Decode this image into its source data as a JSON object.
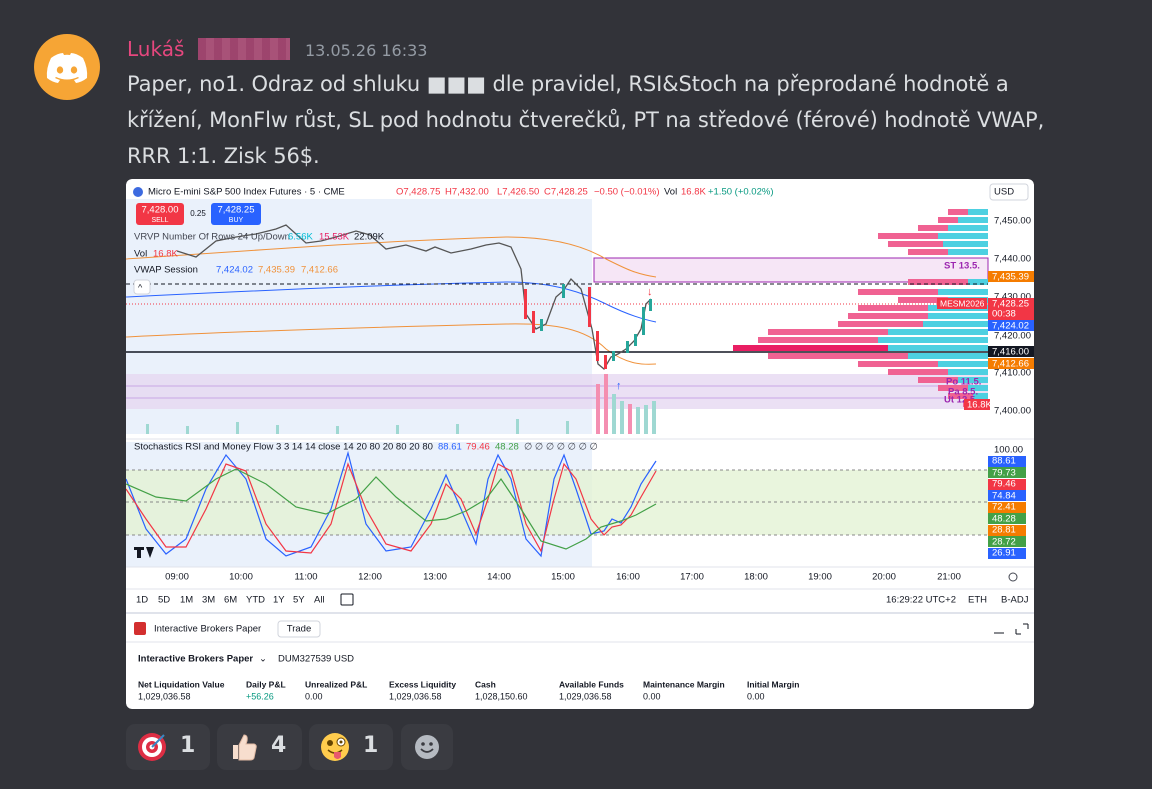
{
  "message": {
    "author": "Lukáš",
    "timestamp": "13.05.26 16:33",
    "text": [
      "Paper, no1. Odraz od shluku ■■■ dle pravidel, RSI&Stoch na přeprodané hodnotě a",
      "křížení, MonFlw růst, SL pod hodnotu čtverečků, PT na středové (férové) hodnotě VWAP,",
      "RRR 1:1. Zisk 56$."
    ]
  },
  "screenshot": {
    "header": {
      "symbol": "Micro E-mini S&P 500 Index Futures · 5 · CME",
      "open": "O7,428.75",
      "high": "H7,432.00",
      "low": "L7,426.50",
      "close": "C7,428.25",
      "change": "−0.50 (−0.01%)",
      "volume_label": "Vol",
      "volume": "16.8K",
      "volume_change": "+1.50 (+0.02%)"
    },
    "currency": "USD",
    "order": {
      "sell_price": "7,428.00",
      "sell_label": "SELL",
      "spread": "0.25",
      "buy_price": "7,428.25",
      "buy_label": "BUY"
    },
    "indicators": {
      "vrvp": "VRVP Number Of Rows 24 Up/Down",
      "vrvp_values": [
        "6.56K",
        "15.53K",
        "22.09K"
      ],
      "vol_label": "Vol",
      "vol_value": "16.8K",
      "vwap_label": "VWAP Session",
      "vwap_values": [
        "7,424.02",
        "7,435.39",
        "7,412.66"
      ]
    },
    "price_axis": [
      "7,450.00",
      "7,440.00",
      "7,430.00",
      "7,420.00",
      "7,410.00",
      "7,400.00"
    ],
    "price_labels": [
      "ST 13.5.",
      "7,435.39",
      "MESM2026",
      "7,428.25",
      "00:38",
      "7,424.02",
      "7,416.00",
      "7,412.66",
      "Po 11.5.",
      "Pa 8.5.",
      "Ut 12.5.",
      "16.8K"
    ],
    "stoch": {
      "title": "Stochastics RSI and Money Flow 3 3 14 14 close 14 20 80 20 80 20 80",
      "values": [
        "88.61",
        "79.46",
        "48.28"
      ],
      "empty": "∅ ∅ ∅ ∅ ∅ ∅ ∅",
      "axis_top": "100.00",
      "axis_labels": [
        "88.61",
        "79.73",
        "79.46",
        "74.84",
        "72.41",
        "48.28",
        "28.81",
        "28.72",
        "26.91"
      ]
    },
    "time_axis": [
      "09:00",
      "10:00",
      "11:00",
      "12:00",
      "13:00",
      "14:00",
      "15:00",
      "16:00",
      "17:00",
      "18:00",
      "19:00",
      "20:00",
      "21:00"
    ],
    "ranges": [
      "1D",
      "5D",
      "1M",
      "3M",
      "6M",
      "YTD",
      "1Y",
      "5Y",
      "All"
    ],
    "status": {
      "time": "16:29:22 UTC+2",
      "session": "ETH",
      "adjust": "B-ADJ"
    },
    "panel": {
      "broker": "Interactive Brokers Paper",
      "trade": "Trade",
      "account_broker": "Interactive Brokers Paper",
      "account_id": "DUM327539 USD",
      "columns": [
        {
          "label": "Net Liquidation Value",
          "value": "1,029,036.58"
        },
        {
          "label": "Daily P&L",
          "value": "+56.26"
        },
        {
          "label": "Unrealized P&L",
          "value": "0.00"
        },
        {
          "label": "Excess Liquidity",
          "value": "1,029,036.58"
        },
        {
          "label": "Cash",
          "value": "1,028,150.60"
        },
        {
          "label": "Available Funds",
          "value": "1,029,036.58"
        },
        {
          "label": "Maintenance Margin",
          "value": "0.00"
        },
        {
          "label": "Initial Margin",
          "value": "0.00"
        }
      ]
    }
  },
  "reactions": [
    {
      "count": 1
    },
    {
      "count": 4
    },
    {
      "count": 1
    }
  ]
}
